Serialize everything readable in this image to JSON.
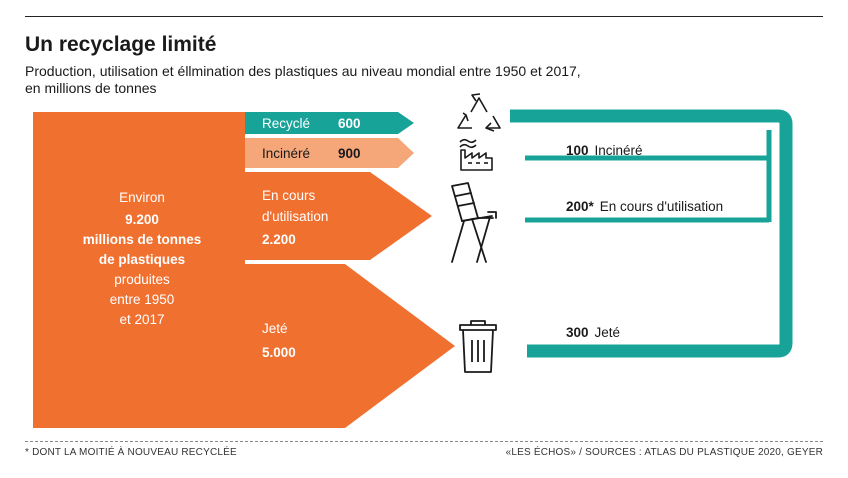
{
  "title": "Un recyclage limité",
  "subtitle_line1": "Production, utilisation et éllmination des plastiques au niveau mondial entre 1950 et 2017,",
  "subtitle_line2": "en millions de tonnes",
  "total": {
    "line1": "Environ",
    "line2": "9.200",
    "line3": "millions de tonnes",
    "line4": "de plastiques",
    "line5": "produites",
    "line6": "entre 1950",
    "line7": "et 2017"
  },
  "flows": {
    "recycled": {
      "label": "Recyclé",
      "value": "600",
      "color": "#17a398"
    },
    "incinerated": {
      "label": "Incinéré",
      "value": "900",
      "color": "#f5a77a"
    },
    "in_use": {
      "label1": "En cours",
      "label2": "d'utilisation",
      "value": "2.200",
      "color": "#f07030"
    },
    "discarded": {
      "label": "Jeté",
      "value": "5.000",
      "color": "#f07030"
    }
  },
  "outcomes": {
    "incinerated": {
      "value": "100",
      "label": "Incinéré"
    },
    "in_use": {
      "value": "200*",
      "label": "En cours d'utilisation"
    },
    "discarded": {
      "value": "300",
      "label": "Jeté"
    }
  },
  "icons": [
    "recycle-icon",
    "factory-icon",
    "chair-icon",
    "trash-bin-icon"
  ],
  "footnote": "* DONT LA MOITIÉ À NOUVEAU RECYCLÉE",
  "source": "«LES ÉCHOS» / SOURCES : ATLAS DU PLASTIQUE 2020, GEYER"
}
